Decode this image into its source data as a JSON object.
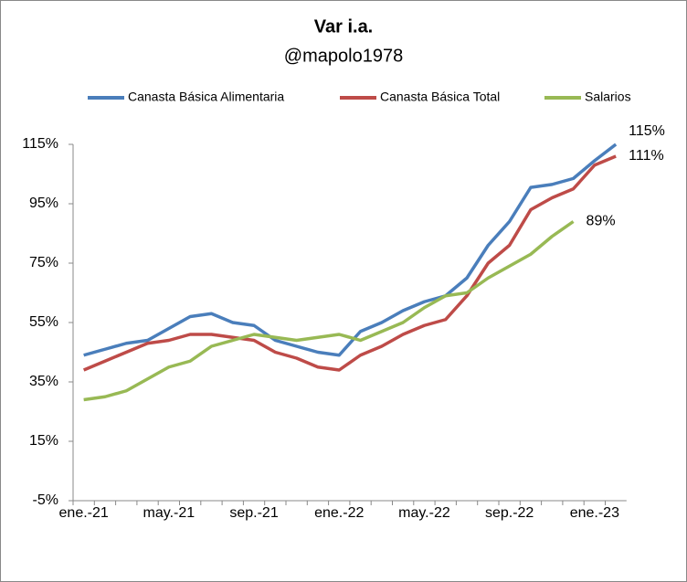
{
  "chart_data": {
    "type": "line",
    "title": "Var i.a.",
    "subtitle": "@mapolo1978",
    "categories": [
      "ene.-21",
      null,
      null,
      null,
      "may.-21",
      null,
      null,
      null,
      "sep.-21",
      null,
      null,
      null,
      "ene.-22",
      null,
      null,
      null,
      "may.-22",
      null,
      null,
      null,
      "sep.-22",
      null,
      null,
      null,
      "ene.-23",
      null
    ],
    "series": [
      {
        "name": "Canasta Básica Alimentaria",
        "color": "#4a7ebb",
        "values": [
          44,
          46,
          48,
          49,
          53,
          57,
          58,
          55,
          54,
          49,
          47,
          45,
          44,
          52,
          55,
          59,
          62,
          64,
          70,
          81,
          89,
          100.5,
          101.5,
          103.5,
          109.5,
          115
        ],
        "value_labels": [
          null,
          null,
          null,
          null,
          null,
          null,
          null,
          null,
          null,
          null,
          null,
          null,
          null,
          null,
          null,
          null,
          null,
          null,
          null,
          null,
          null,
          null,
          null,
          null,
          null,
          "115%"
        ]
      },
      {
        "name": "Canasta Básica Total",
        "color": "#be4b48",
        "values": [
          39,
          42,
          45,
          48,
          49,
          51,
          51,
          50,
          49,
          45,
          43,
          40,
          39,
          44,
          47,
          51,
          54,
          56,
          64,
          75,
          81,
          93,
          97,
          100,
          108,
          111
        ],
        "value_labels": [
          null,
          null,
          null,
          null,
          null,
          null,
          null,
          null,
          null,
          null,
          null,
          null,
          null,
          null,
          null,
          null,
          null,
          null,
          null,
          null,
          null,
          null,
          null,
          null,
          null,
          "111%"
        ]
      },
      {
        "name": "Salarios",
        "color": "#98b954",
        "values": [
          29,
          30,
          32,
          36,
          40,
          42,
          47,
          49,
          51,
          50,
          49,
          50,
          51,
          49,
          52,
          55,
          60,
          64,
          65,
          70,
          74,
          78,
          84,
          89,
          null,
          null
        ],
        "value_labels": [
          null,
          null,
          null,
          null,
          null,
          null,
          null,
          null,
          null,
          null,
          null,
          null,
          null,
          null,
          null,
          null,
          null,
          null,
          null,
          null,
          null,
          null,
          null,
          "89%",
          null,
          null
        ]
      }
    ],
    "ylim": [
      -5,
      115
    ],
    "yticks": [
      {
        "value": -5,
        "label": "-5%"
      },
      {
        "value": 15,
        "label": "15%"
      },
      {
        "value": 35,
        "label": "35%"
      },
      {
        "value": 55,
        "label": "55%"
      },
      {
        "value": 75,
        "label": "75%"
      },
      {
        "value": 95,
        "label": "95%"
      },
      {
        "value": 115,
        "label": "115%"
      }
    ],
    "legend": "top",
    "grid": false
  }
}
